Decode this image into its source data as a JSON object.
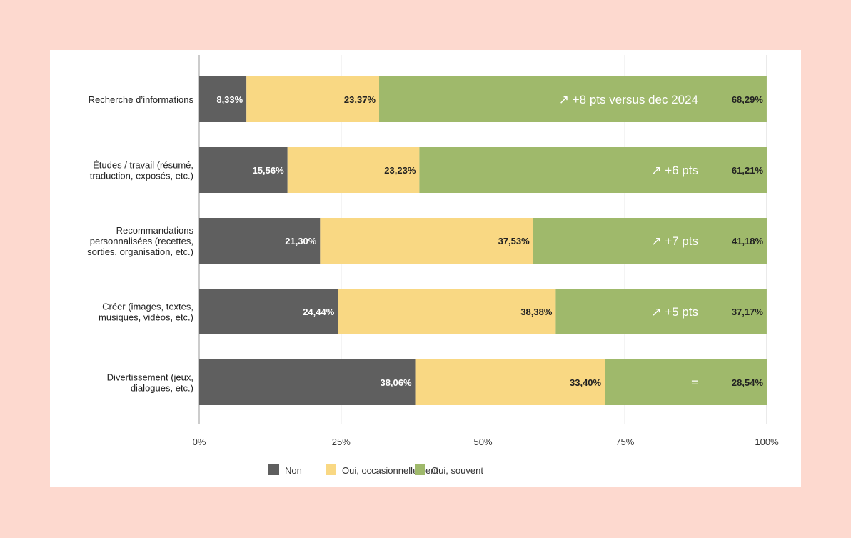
{
  "colors": {
    "page_background": "#FDD9CF",
    "card_background": "#FFFFFF",
    "non": "#5F5F5F",
    "oui_occasionnellement": "#F9D883",
    "oui_souvent": "#9FB96B",
    "gridline": "#D6D6D6",
    "axis_text": "#333333"
  },
  "chart_data": {
    "type": "bar",
    "orientation": "horizontal",
    "stacked": true,
    "title": "",
    "xlabel": "",
    "ylabel": "",
    "xlim": [
      0,
      100
    ],
    "x_ticks": [
      "0%",
      "25%",
      "50%",
      "75%",
      "100%"
    ],
    "grid": true,
    "legend_position": "bottom",
    "categories": [
      [
        "Recherche d’informations"
      ],
      [
        "Études / travail (résumé,",
        "traduction, exposés, etc.)"
      ],
      [
        "Recommandations",
        "personnalisées (recettes,",
        "sorties, organisation, etc.)"
      ],
      [
        "Créer (images, textes,",
        "musiques, vidéos, etc.)"
      ],
      [
        "Divertissement (jeux,",
        "dialogues, etc.)"
      ]
    ],
    "series": [
      {
        "name": "Non",
        "color_key": "non",
        "label_color": "#FFFFFF",
        "values": [
          8.33,
          15.56,
          21.3,
          24.44,
          38.06
        ],
        "labels": [
          "8,33%",
          "15,56%",
          "21,30%",
          "24,44%",
          "38,06%"
        ]
      },
      {
        "name": "Oui, occasionnellement",
        "color_key": "oui_occasionnellement",
        "label_color": "#222222",
        "values": [
          23.37,
          23.23,
          37.53,
          38.38,
          33.4
        ],
        "labels": [
          "23,37%",
          "23,23%",
          "37,53%",
          "38,38%",
          "33,40%"
        ]
      },
      {
        "name": "Oui, souvent",
        "color_key": "oui_souvent",
        "label_color": "#222222",
        "values": [
          68.29,
          61.21,
          41.18,
          37.17,
          28.54
        ],
        "labels": [
          "68,29%",
          "61,21%",
          "41,18%",
          "37,17%",
          "28,54%"
        ]
      }
    ],
    "annotations": [
      "↗ +8 pts versus dec 2024",
      "↗ +6 pts",
      "↗ +7 pts",
      "↗ +5 pts",
      "="
    ]
  }
}
